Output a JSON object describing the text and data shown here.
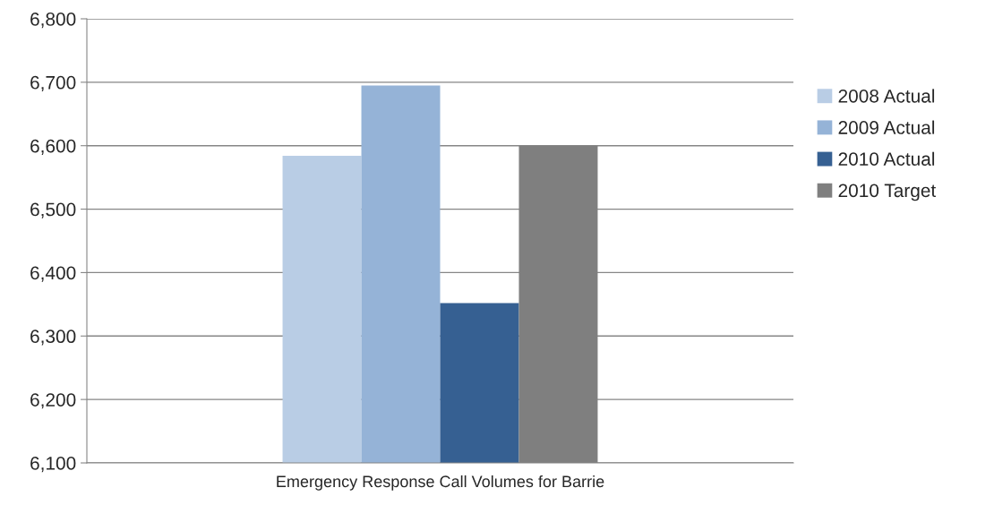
{
  "chart_data": {
    "type": "bar",
    "categories": [
      "Emergency Response Call Volumes for Barrie"
    ],
    "series": [
      {
        "name": "2008 Actual",
        "color": "#b9cde5",
        "values": [
          6584
        ]
      },
      {
        "name": "2009 Actual",
        "color": "#95b3d7",
        "values": [
          6695
        ]
      },
      {
        "name": "2010 Actual",
        "color": "#366092",
        "values": [
          6352
        ]
      },
      {
        "name": "2010 Target",
        "color": "#7f7f7f",
        "values": [
          6600
        ]
      }
    ],
    "ylim": [
      6100,
      6800
    ],
    "yticks": [
      {
        "value": 6100,
        "label": "6,100"
      },
      {
        "value": 6200,
        "label": "6,200"
      },
      {
        "value": 6300,
        "label": "6,300"
      },
      {
        "value": 6400,
        "label": "6,400"
      },
      {
        "value": 6500,
        "label": "6,500"
      },
      {
        "value": 6600,
        "label": "6,600"
      },
      {
        "value": 6700,
        "label": "6,700"
      },
      {
        "value": 6800,
        "label": "6,800"
      }
    ],
    "grid": "y",
    "legend": "right"
  }
}
